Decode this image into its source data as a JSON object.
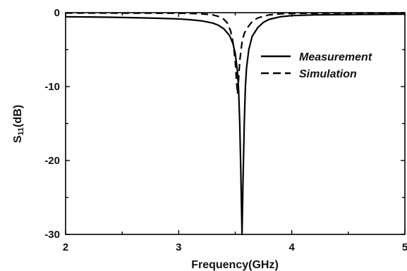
{
  "chart_data": {
    "type": "line",
    "title": "",
    "xlabel": "Frequency(GHz)",
    "ylabel_main": "S",
    "ylabel_sub": "11",
    "ylabel_unit": "(dB)",
    "xlim": [
      2,
      5
    ],
    "ylim": [
      -30,
      0
    ],
    "x_ticks": [
      2,
      3,
      4,
      5
    ],
    "y_ticks": [
      0,
      -10,
      -20,
      -30
    ],
    "grid": false,
    "legend_position": "right, upper",
    "series": [
      {
        "name": "Measurement",
        "style": "solid",
        "color": "#000000",
        "points": [
          [
            2.0,
            -0.55
          ],
          [
            2.2,
            -0.58
          ],
          [
            2.4,
            -0.62
          ],
          [
            2.6,
            -0.68
          ],
          [
            2.8,
            -0.75
          ],
          [
            3.0,
            -0.85
          ],
          [
            3.1,
            -0.95
          ],
          [
            3.2,
            -1.1
          ],
          [
            3.3,
            -1.4
          ],
          [
            3.35,
            -1.7
          ],
          [
            3.4,
            -2.2
          ],
          [
            3.45,
            -3.1
          ],
          [
            3.48,
            -4.2
          ],
          [
            3.5,
            -5.5
          ],
          [
            3.52,
            -8.0
          ],
          [
            3.53,
            -10.5
          ],
          [
            3.54,
            -15.0
          ],
          [
            3.55,
            -22.0
          ],
          [
            3.56,
            -30.0
          ],
          [
            3.57,
            -22.0
          ],
          [
            3.58,
            -15.0
          ],
          [
            3.59,
            -10.0
          ],
          [
            3.6,
            -7.5
          ],
          [
            3.62,
            -5.0
          ],
          [
            3.65,
            -3.2
          ],
          [
            3.7,
            -2.0
          ],
          [
            3.75,
            -1.3
          ],
          [
            3.8,
            -0.9
          ],
          [
            3.9,
            -0.55
          ],
          [
            4.0,
            -0.4
          ],
          [
            4.2,
            -0.3
          ],
          [
            4.5,
            -0.25
          ],
          [
            5.0,
            -0.2
          ]
        ]
      },
      {
        "name": "Simulation",
        "style": "dashed",
        "color": "#000000",
        "points": [
          [
            2.0,
            -0.05
          ],
          [
            2.5,
            -0.06
          ],
          [
            3.0,
            -0.08
          ],
          [
            3.2,
            -0.15
          ],
          [
            3.3,
            -0.3
          ],
          [
            3.35,
            -0.5
          ],
          [
            3.4,
            -0.9
          ],
          [
            3.43,
            -1.4
          ],
          [
            3.46,
            -2.5
          ],
          [
            3.48,
            -4.0
          ],
          [
            3.5,
            -6.5
          ],
          [
            3.51,
            -9.0
          ],
          [
            3.52,
            -11.0
          ],
          [
            3.53,
            -9.0
          ],
          [
            3.54,
            -6.5
          ],
          [
            3.56,
            -4.0
          ],
          [
            3.58,
            -2.8
          ],
          [
            3.61,
            -2.0
          ],
          [
            3.65,
            -1.2
          ],
          [
            3.7,
            -0.7
          ],
          [
            3.8,
            -0.3
          ],
          [
            3.9,
            -0.15
          ],
          [
            4.0,
            -0.1
          ],
          [
            4.5,
            -0.05
          ],
          [
            5.0,
            -0.05
          ]
        ]
      }
    ]
  }
}
